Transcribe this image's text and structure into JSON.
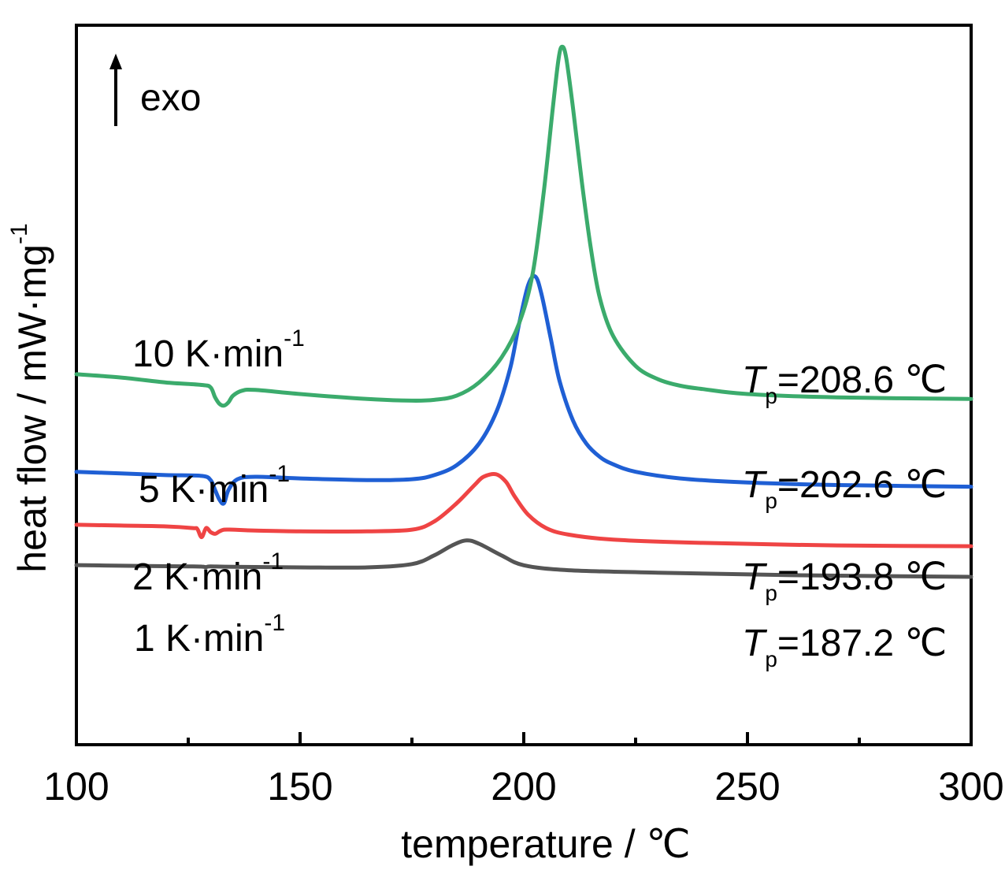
{
  "chart_data": {
    "type": "line",
    "title": "",
    "xlabel": "temperature / ℃",
    "ylabel": "heat flow / mW·mg",
    "ylabel_sup": "-1",
    "xlim": [
      100,
      300
    ],
    "xticks": [
      100,
      150,
      200,
      250,
      300
    ],
    "x_minor_ticks": [
      125,
      175,
      225,
      275
    ],
    "y_ticks_shown": false,
    "grid": false,
    "legend": "none",
    "exo_label": "exo",
    "series": [
      {
        "name": "1 K·min",
        "name_sup": "-1",
        "color": "#555555",
        "peak_label": {
          "T": "T",
          "sub": "p",
          "value": "=187.2 ℃"
        },
        "x": [
          100,
          110,
          120,
          125,
          128,
          129,
          130,
          135,
          150,
          165,
          175,
          180,
          184,
          187.2,
          190,
          195,
          200,
          210,
          230,
          260,
          300
        ],
        "y": [
          0.86,
          0.82,
          0.79,
          0.78,
          0.77,
          0.74,
          0.78,
          0.76,
          0.72,
          0.72,
          0.92,
          1.45,
          2.05,
          2.35,
          2.15,
          1.45,
          0.85,
          0.55,
          0.4,
          0.25,
          0.15
        ]
      },
      {
        "name": "2 K·min",
        "name_sup": "-1",
        "color": "#ef4444",
        "peak_label": {
          "T": "T",
          "sub": "p",
          "value": "=193.8 ℃"
        },
        "x": [
          100,
          110,
          120,
          126,
          127,
          128,
          129,
          130,
          131,
          132,
          133,
          135,
          140,
          150,
          165,
          175,
          180,
          185,
          189,
          191,
          193.8,
          196,
          198,
          201,
          205,
          210,
          220,
          240,
          270,
          300
        ],
        "y": [
          3.3,
          3.25,
          3.2,
          3.1,
          3.05,
          2.55,
          3.1,
          2.85,
          2.75,
          2.9,
          3.0,
          3.0,
          2.95,
          2.9,
          2.9,
          3.0,
          3.5,
          4.6,
          5.7,
          6.2,
          6.35,
          5.9,
          5.0,
          3.9,
          3.1,
          2.7,
          2.4,
          2.2,
          2.05,
          2.0
        ]
      },
      {
        "name": "5 K·min",
        "name_sup": "-1",
        "color": "#1f5fd4",
        "peak_label": {
          "T": "T",
          "sub": "p",
          "value": "=202.6 ℃"
        },
        "x": [
          100,
          110,
          120,
          128,
          130,
          131,
          132,
          133,
          134,
          136,
          140,
          150,
          165,
          175,
          180,
          185,
          190,
          194,
          197,
          199,
          201,
          202.6,
          204,
          206,
          208,
          211,
          214,
          217,
          220,
          225,
          235,
          250,
          270,
          300
        ],
        "y": [
          6.5,
          6.4,
          6.3,
          6.25,
          6.0,
          5.4,
          4.8,
          4.6,
          5.4,
          6.05,
          6.2,
          6.1,
          6.0,
          6.05,
          6.3,
          6.9,
          8.2,
          10.2,
          12.8,
          15.5,
          17.8,
          18.3,
          17.2,
          14.6,
          12.0,
          9.6,
          8.2,
          7.4,
          6.95,
          6.5,
          6.1,
          5.85,
          5.7,
          5.6
        ]
      },
      {
        "name": "10 K·min",
        "name_sup": "-1",
        "color": "#3bab6c",
        "peak_label": {
          "T": "T",
          "sub": "p",
          "value": "=208.6 ℃"
        },
        "x": [
          100,
          110,
          120,
          128,
          130,
          131,
          132,
          133,
          134,
          135,
          137,
          140,
          150,
          165,
          175,
          180,
          185,
          190,
          195,
          199,
          202,
          204.5,
          206.5,
          207.8,
          208.6,
          209.5,
          211,
          213,
          215,
          217,
          220,
          225,
          230,
          235,
          240,
          250,
          270,
          300
        ],
        "y": [
          12.4,
          12.2,
          11.9,
          11.75,
          11.6,
          11.0,
          10.6,
          10.5,
          10.7,
          11.1,
          11.4,
          11.45,
          11.2,
          10.9,
          10.8,
          10.85,
          11.1,
          11.9,
          13.4,
          15.5,
          18.5,
          23.5,
          28.5,
          31.5,
          32.2,
          31.5,
          28.5,
          24.0,
          20.0,
          17.0,
          14.7,
          12.9,
          12.1,
          11.7,
          11.5,
          11.2,
          11.0,
          10.9
        ]
      }
    ]
  }
}
